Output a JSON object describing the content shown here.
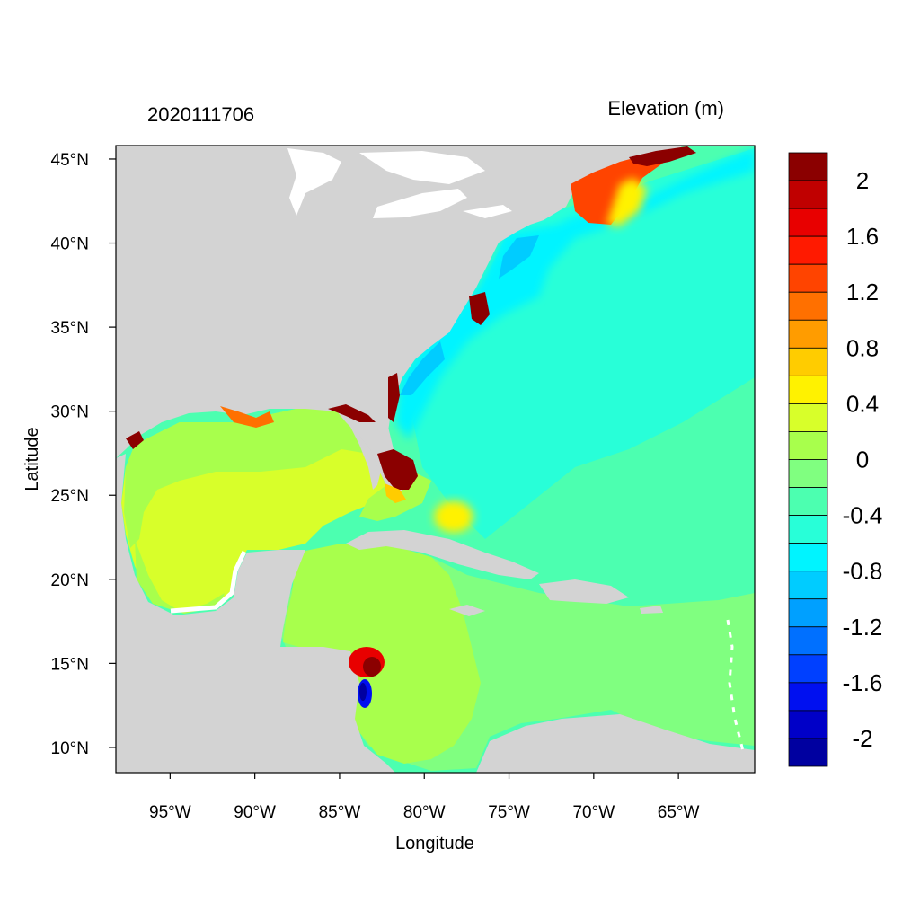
{
  "header": {
    "timestamp": "2020111706",
    "field_label": "Elevation (m)"
  },
  "axes": {
    "xlabel": "Longitude",
    "ylabel": "Latitude",
    "lon_ticks": [
      "95°W",
      "90°W",
      "85°W",
      "80°W",
      "75°W",
      "70°W",
      "65°W"
    ],
    "lon_values": [
      -95,
      -90,
      -85,
      -80,
      -75,
      -70,
      -65
    ],
    "lat_ticks": [
      "45°N",
      "40°N",
      "35°N",
      "30°N",
      "25°N",
      "20°N",
      "15°N",
      "10°N"
    ],
    "lat_values": [
      45,
      40,
      35,
      30,
      25,
      20,
      15,
      10
    ],
    "lon_range": [
      -98.2,
      -60.5
    ],
    "lat_range": [
      8.5,
      45.8
    ]
  },
  "colorbar": {
    "labels": [
      "2",
      "1.6",
      "1.2",
      "0.8",
      "0.4",
      "0",
      "-0.4",
      "-0.8",
      "-1.2",
      "-1.6",
      "-2"
    ],
    "colors": [
      "#8b0000",
      "#c00000",
      "#e80000",
      "#ff1a00",
      "#ff4400",
      "#ff7000",
      "#ff9c00",
      "#ffcc00",
      "#fff200",
      "#d8ff2a",
      "#a8ff4c",
      "#80ff80",
      "#4cffb0",
      "#28ffd8",
      "#00f4ff",
      "#00ccff",
      "#00a0ff",
      "#0070ff",
      "#0040ff",
      "#0010f0",
      "#0000c8",
      "#0000a0"
    ]
  },
  "map": {
    "land_color": "#d3d3d3",
    "water_color": "#ffffff"
  }
}
